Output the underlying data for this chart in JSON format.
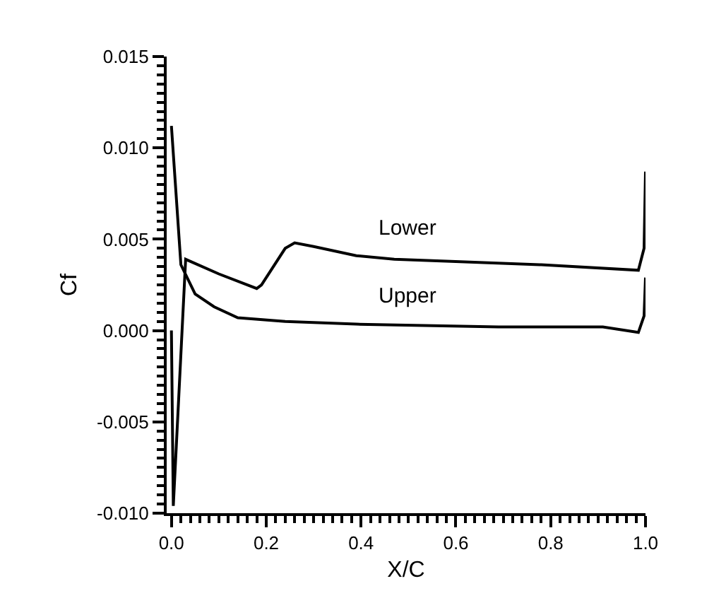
{
  "chart_data": {
    "type": "line",
    "xlabel": "X/C",
    "ylabel": "Cf",
    "grid": false,
    "marker": "none",
    "line_style": "solid",
    "xlim": [
      -0.01,
      1.0
    ],
    "xticks": [
      {
        "value": 0,
        "label": "0.0"
      },
      {
        "value": 0.2,
        "label": "0.2"
      },
      {
        "value": 0.4,
        "label": "0.4"
      },
      {
        "value": 0.6,
        "label": "0.6"
      },
      {
        "value": 0.8,
        "label": "0.8"
      },
      {
        "value": 1,
        "label": "1.0"
      }
    ],
    "ylim": [
      -0.01,
      0.015
    ],
    "yticks": [
      {
        "value": -0.01,
        "label": "-0.010"
      },
      {
        "value": -0.005,
        "label": "-0.005"
      },
      {
        "value": 0,
        "label": "0.000"
      },
      {
        "value": 0.005,
        "label": "0.005"
      },
      {
        "value": 0.01,
        "label": "0.010"
      },
      {
        "value": 0.015,
        "label": "0.015"
      }
    ],
    "annotations": [
      {
        "text": "Lower",
        "x": 0.43,
        "y": 0.004
      },
      {
        "text": "Upper",
        "x": 0.43,
        "y": 0.0003
      }
    ],
    "series": [
      {
        "color": "#000000",
        "x": [
          0.0,
          0.004,
          0.03,
          0.1,
          0.18,
          0.19,
          0.24,
          0.26,
          0.3,
          0.39,
          0.47,
          0.58,
          0.78,
          0.985,
          0.997,
          1.0
        ],
        "values": [
          0.0,
          -0.0096,
          0.0039,
          0.0031,
          0.0023,
          0.0025,
          0.0045,
          0.0048,
          0.0046,
          0.0041,
          0.0039,
          0.0038,
          0.0036,
          0.0033,
          0.0045,
          0.0087
        ]
      },
      {
        "color": "#000000",
        "x": [
          0.0,
          0.02,
          0.05,
          0.09,
          0.14,
          0.24,
          0.39,
          0.69,
          0.91,
          0.985,
          0.997,
          1.0
        ],
        "values": [
          0.0112,
          0.0036,
          0.002,
          0.0013,
          0.0007,
          0.0005,
          0.00035,
          0.0002,
          0.0002,
          -0.0001,
          0.0008,
          0.0029
        ]
      }
    ]
  }
}
